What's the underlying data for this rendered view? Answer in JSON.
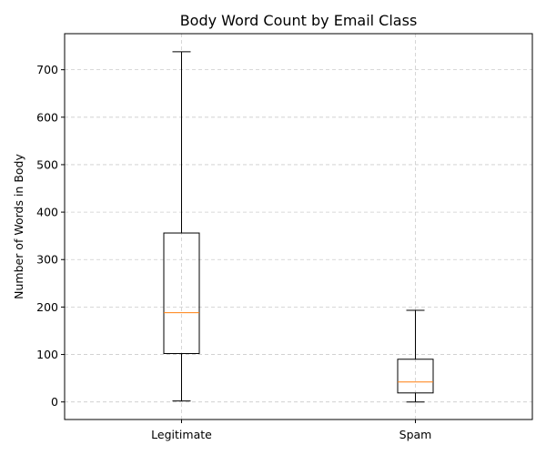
{
  "chart_data": {
    "type": "box",
    "title": "Body Word Count by Email Class",
    "xlabel": "",
    "ylabel": "Number of Words in Body",
    "ylim": [
      -37,
      776
    ],
    "yticks": [
      0,
      100,
      200,
      300,
      400,
      500,
      600,
      700
    ],
    "grid": true,
    "categories": [
      "Legitimate",
      "Spam"
    ],
    "boxes": [
      {
        "category": "Legitimate",
        "whisker_low": 2,
        "q1": 102,
        "median": 188,
        "q3": 356,
        "whisker_high": 738
      },
      {
        "category": "Spam",
        "whisker_low": 0,
        "q1": 19,
        "median": 42,
        "q3": 90,
        "whisker_high": 193
      }
    ],
    "colors": {
      "box": "#000000",
      "median": "#ff7f0e",
      "grid": "#cccccc"
    }
  }
}
